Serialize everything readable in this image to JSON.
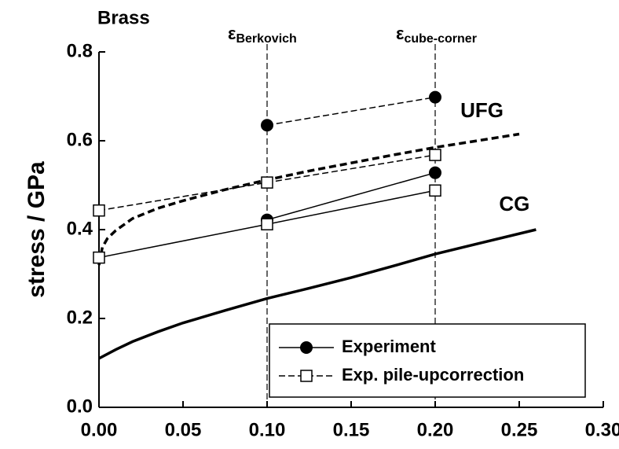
{
  "chart_data": {
    "type": "line",
    "title": "Brass",
    "y_label": "stress / GPa",
    "xlim": [
      0,
      0.3
    ],
    "ylim": [
      0,
      0.8
    ],
    "xticks": [
      {
        "value": 0,
        "label": "0.00"
      },
      0.05,
      {
        "value": 0.1,
        "label": "0.10"
      },
      0.15,
      {
        "value": 0.2,
        "label": "0.20"
      },
      0.25,
      {
        "value": 0.3,
        "label": "0.30"
      }
    ],
    "yticks": [
      {
        "value": 0,
        "label": "0.0"
      },
      0.2,
      0.4,
      0.6,
      0.8
    ],
    "legend": "lower right",
    "series": [
      {
        "name": "Experiment",
        "color": "#000000",
        "marker": "circle",
        "dash": false,
        "segments": [
          {
            "x": [
              0.1,
              0.2
            ],
            "values": [
              0.635,
              0.698
            ],
            "dash": true
          },
          {
            "x": [
              0.1,
              0.2
            ],
            "values": [
              0.422,
              0.528
            ],
            "dash": false
          }
        ]
      },
      {
        "name": "Exp. pile-upcorrection",
        "color": "#000000",
        "marker": "square",
        "dash": true,
        "segments": [
          {
            "x": [
              0,
              0.1,
              0.2
            ],
            "values": [
              0.443,
              0.506,
              0.568
            ],
            "dash": true
          },
          {
            "x": [
              0,
              0.1,
              0.2
            ],
            "values": [
              0.337,
              0.412,
              0.488
            ],
            "dash": false
          }
        ]
      }
    ],
    "curves": [
      {
        "label": "UFG",
        "dash": true,
        "label_x": 0.215,
        "label_y": 0.665,
        "x": [
          0,
          0.002,
          0.005,
          0.01,
          0.02,
          0.035,
          0.05,
          0.075,
          0.1,
          0.125,
          0.15,
          0.175,
          0.2,
          0.225,
          0.25
        ],
        "values": [
          0.32,
          0.36,
          0.38,
          0.398,
          0.425,
          0.448,
          0.465,
          0.49,
          0.512,
          0.532,
          0.55,
          0.568,
          0.585,
          0.6,
          0.615
        ]
      },
      {
        "label": "CG",
        "dash": false,
        "label_x": 0.238,
        "label_y": 0.455,
        "x": [
          0,
          0.01,
          0.02,
          0.035,
          0.05,
          0.075,
          0.1,
          0.125,
          0.15,
          0.175,
          0.2,
          0.225,
          0.26
        ],
        "values": [
          0.11,
          0.13,
          0.148,
          0.17,
          0.19,
          0.218,
          0.245,
          0.268,
          0.292,
          0.318,
          0.345,
          0.368,
          0.4
        ]
      }
    ],
    "annotations": [
      {
        "symbol": "ε",
        "subscript": "Berkovich",
        "x": 0.1
      },
      {
        "symbol": "ε",
        "subscript": "cube-corner",
        "x": 0.2
      }
    ]
  }
}
